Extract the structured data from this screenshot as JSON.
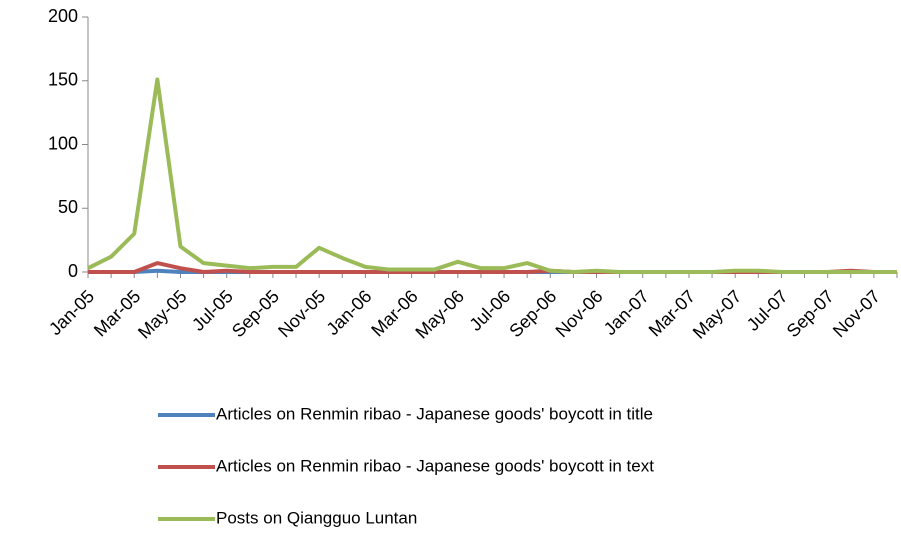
{
  "chart_data": {
    "type": "line",
    "categories": [
      "Jan-05",
      null,
      "Mar-05",
      null,
      "May-05",
      null,
      "Jul-05",
      null,
      "Sep-05",
      null,
      "Nov-05",
      null,
      "Jan-06",
      null,
      "Mar-06",
      null,
      "May-06",
      null,
      "Jul-06",
      null,
      "Sep-06",
      null,
      "Nov-06",
      null,
      "Jan-07",
      null,
      "Mar-07",
      null,
      "May-07",
      null,
      "Jul-07",
      null,
      "Sep-07",
      null,
      "Nov-07",
      null
    ],
    "series": [
      {
        "name": "Articles on Renmin ribao - Japanese goods' boycott in title",
        "color": "#4f81bd",
        "values": [
          0,
          0,
          0,
          1,
          0,
          0,
          0,
          0,
          0,
          0,
          0,
          0,
          0,
          0,
          0,
          0,
          0,
          0,
          0,
          0,
          0,
          0,
          0,
          0,
          0,
          0,
          0,
          0,
          0,
          0,
          0,
          0,
          0,
          0,
          0,
          0
        ]
      },
      {
        "name": "Articles on Renmin ribao - Japanese goods' boycott in text",
        "color": "#c0504d",
        "values": [
          0,
          0,
          0,
          7,
          3,
          0,
          1,
          0,
          0,
          0,
          0,
          0,
          0,
          0,
          0,
          0,
          0,
          0,
          0,
          0,
          1,
          0,
          0,
          0,
          0,
          0,
          0,
          0,
          0,
          0,
          0,
          0,
          0,
          1,
          0,
          0
        ]
      },
      {
        "name": "Posts on Qiangguo Luntan",
        "color": "#9bbb59",
        "values": [
          3,
          12,
          30,
          151,
          20,
          7,
          5,
          3,
          4,
          4,
          19,
          11,
          4,
          2,
          2,
          2,
          8,
          3,
          3,
          7,
          1,
          0,
          1,
          0,
          0,
          0,
          0,
          0,
          1,
          1,
          0,
          0,
          0,
          0,
          0,
          0
        ]
      }
    ],
    "ylim": [
      0,
      200
    ],
    "yticks": [
      0,
      50,
      100,
      150,
      200
    ],
    "grid": false,
    "legend": "bottom"
  }
}
